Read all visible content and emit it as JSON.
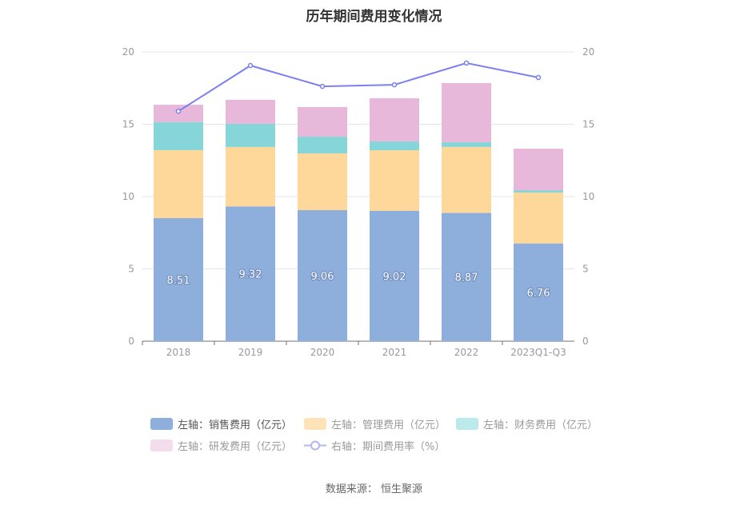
{
  "chart_data": {
    "type": "bar",
    "title": "历年期间费用变化情况",
    "categories": [
      "2018",
      "2019",
      "2020",
      "2021",
      "2022",
      "2023Q1-Q3"
    ],
    "left_axis": {
      "ylim": [
        0,
        20
      ],
      "ticks": [
        "0",
        "5",
        "10",
        "15",
        "20"
      ]
    },
    "right_axis": {
      "ylim": [
        0,
        20
      ],
      "ticks": [
        "0",
        "5",
        "10",
        "15",
        "20"
      ]
    },
    "series": [
      {
        "name": "左轴：销售费用（亿元）",
        "type": "bar",
        "color": "#8eaedb",
        "values": [
          8.51,
          9.32,
          9.06,
          9.02,
          8.87,
          6.76
        ],
        "labels": [
          "8.51",
          "9.32",
          "9.06",
          "9.02",
          "8.87",
          "6.76"
        ]
      },
      {
        "name": "左轴：管理费用（亿元）",
        "type": "bar",
        "color": "#fed89b",
        "values": [
          4.7,
          4.11,
          3.92,
          4.18,
          4.56,
          3.52
        ]
      },
      {
        "name": "左轴：财务费用（亿元）",
        "type": "bar",
        "color": "#86d5d8",
        "values": [
          1.94,
          1.6,
          1.16,
          0.61,
          0.33,
          0.16
        ]
      },
      {
        "name": "左轴：研发费用（亿元）",
        "type": "bar",
        "color": "#e7b8d9",
        "values": [
          1.2,
          1.66,
          2.05,
          2.99,
          4.09,
          2.87
        ]
      },
      {
        "name": "右轴：期间费用率（%）",
        "type": "line",
        "color": "#7b7ff0",
        "values": [
          15.9,
          19.06,
          17.62,
          17.73,
          19.23,
          18.23
        ]
      }
    ],
    "legend_position": "bottom",
    "grid": true
  },
  "legend_colors": [
    "#8eaedb",
    "#fee3b8",
    "#bce9ea",
    "#f3dcec"
  ],
  "source": "数据来源：  恒生聚源"
}
